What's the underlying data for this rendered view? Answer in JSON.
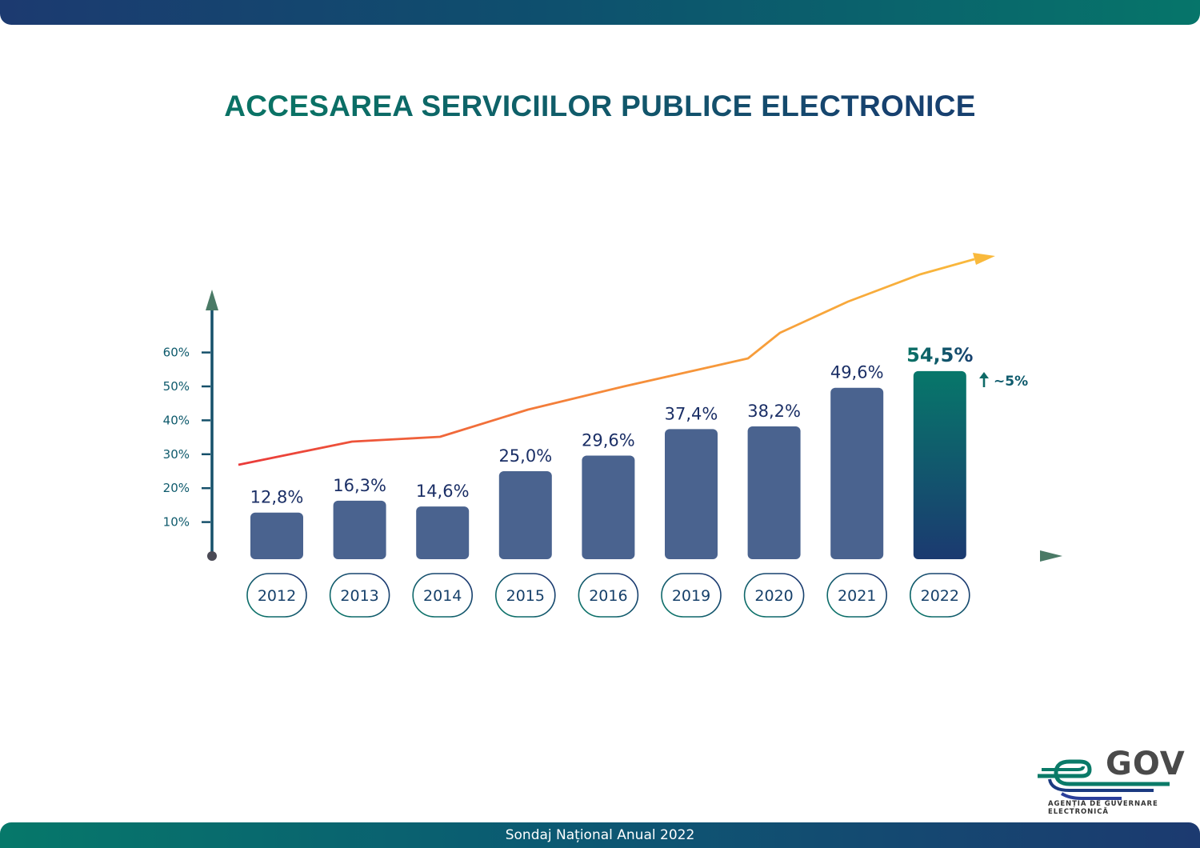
{
  "header": {
    "title": "ACCESAREA SERVICIILOR PUBLICE ELECTRONICE"
  },
  "footer": {
    "text": "Sondaj Național Anual 2022"
  },
  "logo": {
    "name": "GOV",
    "subtitle": "AGENȚIA DE GUVERNARE ELECTRONICĂ"
  },
  "colors": {
    "bar": "#4a638f",
    "highlight_top": "#07776a",
    "highlight_bottom": "#1b3a70",
    "axis": "#15506a",
    "label": "#1b2f66",
    "trend_start": "#ea3a3a",
    "trend_end": "#f9b93c"
  },
  "chart_data": {
    "type": "bar",
    "title": "ACCESAREA SERVICIILOR PUBLICE ELECTRONICE",
    "xlabel": "",
    "ylabel": "",
    "ylim": [
      0,
      65
    ],
    "y_ticks": [
      "10%",
      "20%",
      "30%",
      "40%",
      "50%",
      "60%"
    ],
    "y_tick_values": [
      10,
      20,
      30,
      40,
      50,
      60
    ],
    "categories": [
      "2012",
      "2013",
      "2014",
      "2015",
      "2016",
      "2019",
      "2020",
      "2021",
      "2022"
    ],
    "values": [
      12.8,
      16.3,
      14.6,
      25.0,
      29.6,
      37.4,
      38.2,
      49.6,
      54.5
    ],
    "value_labels": [
      "12,8%",
      "16,3%",
      "14,6%",
      "25,0%",
      "29,6%",
      "37,4%",
      "38,2%",
      "49,6%",
      "54,5%"
    ],
    "highlight_index": 8,
    "annotation": "~5%",
    "trend_line": "increasing arrow above bars",
    "grid": false
  }
}
